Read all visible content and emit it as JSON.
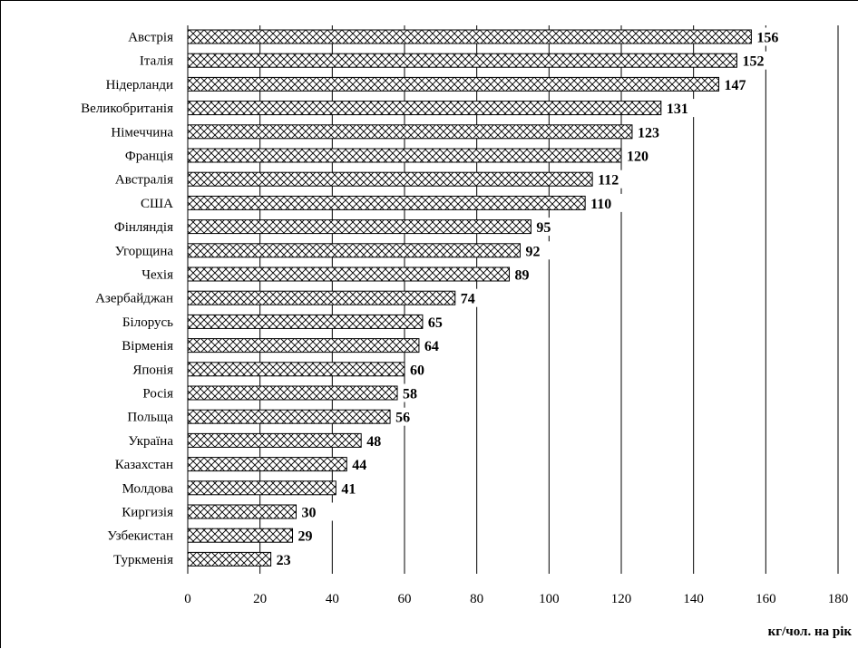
{
  "chart_data": {
    "type": "bar",
    "orientation": "horizontal",
    "categories": [
      "Австрія",
      "Італія",
      "Нідерланди",
      "Великобританія",
      "Німеччина",
      "Франція",
      "Австралія",
      "США",
      "Фінляндія",
      "Угорщина",
      "Чехія",
      "Азербайджан",
      "Білорусь",
      "Вірменія",
      "Японія",
      "Росія",
      "Польща",
      "Україна",
      "Казахстан",
      "Молдова",
      "Киргизія",
      "Узбекистан",
      "Туркменія"
    ],
    "values": [
      156,
      152,
      147,
      131,
      123,
      120,
      112,
      110,
      95,
      92,
      89,
      74,
      65,
      64,
      60,
      58,
      56,
      48,
      44,
      41,
      30,
      29,
      23
    ],
    "xlabel": "кг/чол. на рік",
    "xlim": [
      0,
      180
    ],
    "xticks": [
      0,
      20,
      40,
      60,
      80,
      100,
      120,
      140,
      160,
      180
    ],
    "grid": "vertical",
    "bar_fill": "crosshatch",
    "colors": {
      "bar_stroke": "#000000",
      "grid": "#000000",
      "background": "#ffffff"
    }
  }
}
